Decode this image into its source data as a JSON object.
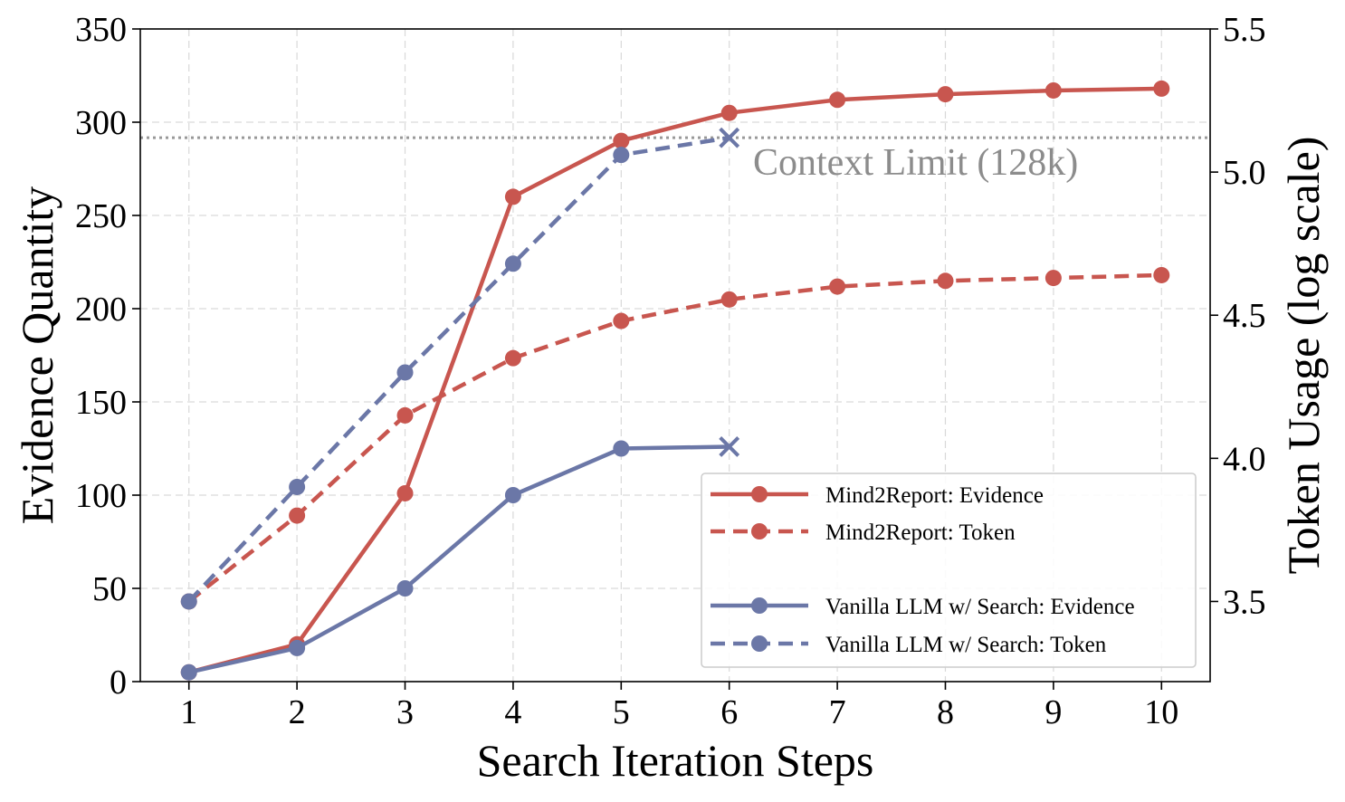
{
  "chart_data": {
    "type": "line",
    "xlabel": "Search Iteration Steps",
    "ylabel": "Evidence Quantity",
    "y2label": "Token Usage (log scale)",
    "x": [
      1,
      2,
      3,
      4,
      5,
      6,
      7,
      8,
      9,
      10
    ],
    "xticks": [
      "1",
      "2",
      "3",
      "4",
      "5",
      "6",
      "7",
      "8",
      "9",
      "10"
    ],
    "xlim": [
      0.55,
      10.45
    ],
    "ylim": [
      0,
      350
    ],
    "yticks": [
      "0",
      "50",
      "100",
      "150",
      "200",
      "250",
      "300",
      "350"
    ],
    "y2lim": [
      3.22,
      5.5
    ],
    "y2ticks": [
      "3.5",
      "4.0",
      "4.5",
      "5.0",
      "5.5"
    ],
    "grid": true,
    "legend_position": "lower-right",
    "colors": {
      "mind2report": "#c8564f",
      "vanilla": "#6b77a7",
      "limit": "#999999"
    },
    "context_limit": {
      "label": "Context Limit (128k)",
      "y2": 5.12
    },
    "series": [
      {
        "name": "Mind2Report: Evidence",
        "axis": "left",
        "style": "solid",
        "color": "#c8564f",
        "x": [
          1,
          2,
          3,
          4,
          5,
          6,
          7,
          8,
          9,
          10
        ],
        "values": [
          5,
          20,
          101,
          260,
          290,
          305,
          312,
          315,
          317,
          318
        ]
      },
      {
        "name": "Mind2Report: Token",
        "axis": "right",
        "style": "dashed",
        "color": "#c8564f",
        "x": [
          1,
          2,
          3,
          4,
          5,
          6,
          7,
          8,
          9,
          10
        ],
        "values": [
          3.5,
          3.8,
          4.15,
          4.35,
          4.48,
          4.555,
          4.6,
          4.62,
          4.63,
          4.64
        ]
      },
      {
        "name": "Vanilla LLM w/ Search: Evidence",
        "axis": "left",
        "style": "solid",
        "color": "#6b77a7",
        "x": [
          1,
          2,
          3,
          4,
          5,
          6
        ],
        "values": [
          5,
          18,
          50,
          100,
          125,
          126
        ],
        "end_marker": "x"
      },
      {
        "name": "Vanilla LLM w/ Search: Token",
        "axis": "right",
        "style": "dashed",
        "color": "#6b77a7",
        "x": [
          1,
          2,
          3,
          4,
          5,
          6
        ],
        "values": [
          3.5,
          3.9,
          4.3,
          4.68,
          5.06,
          5.12
        ],
        "end_marker": "x"
      }
    ]
  }
}
